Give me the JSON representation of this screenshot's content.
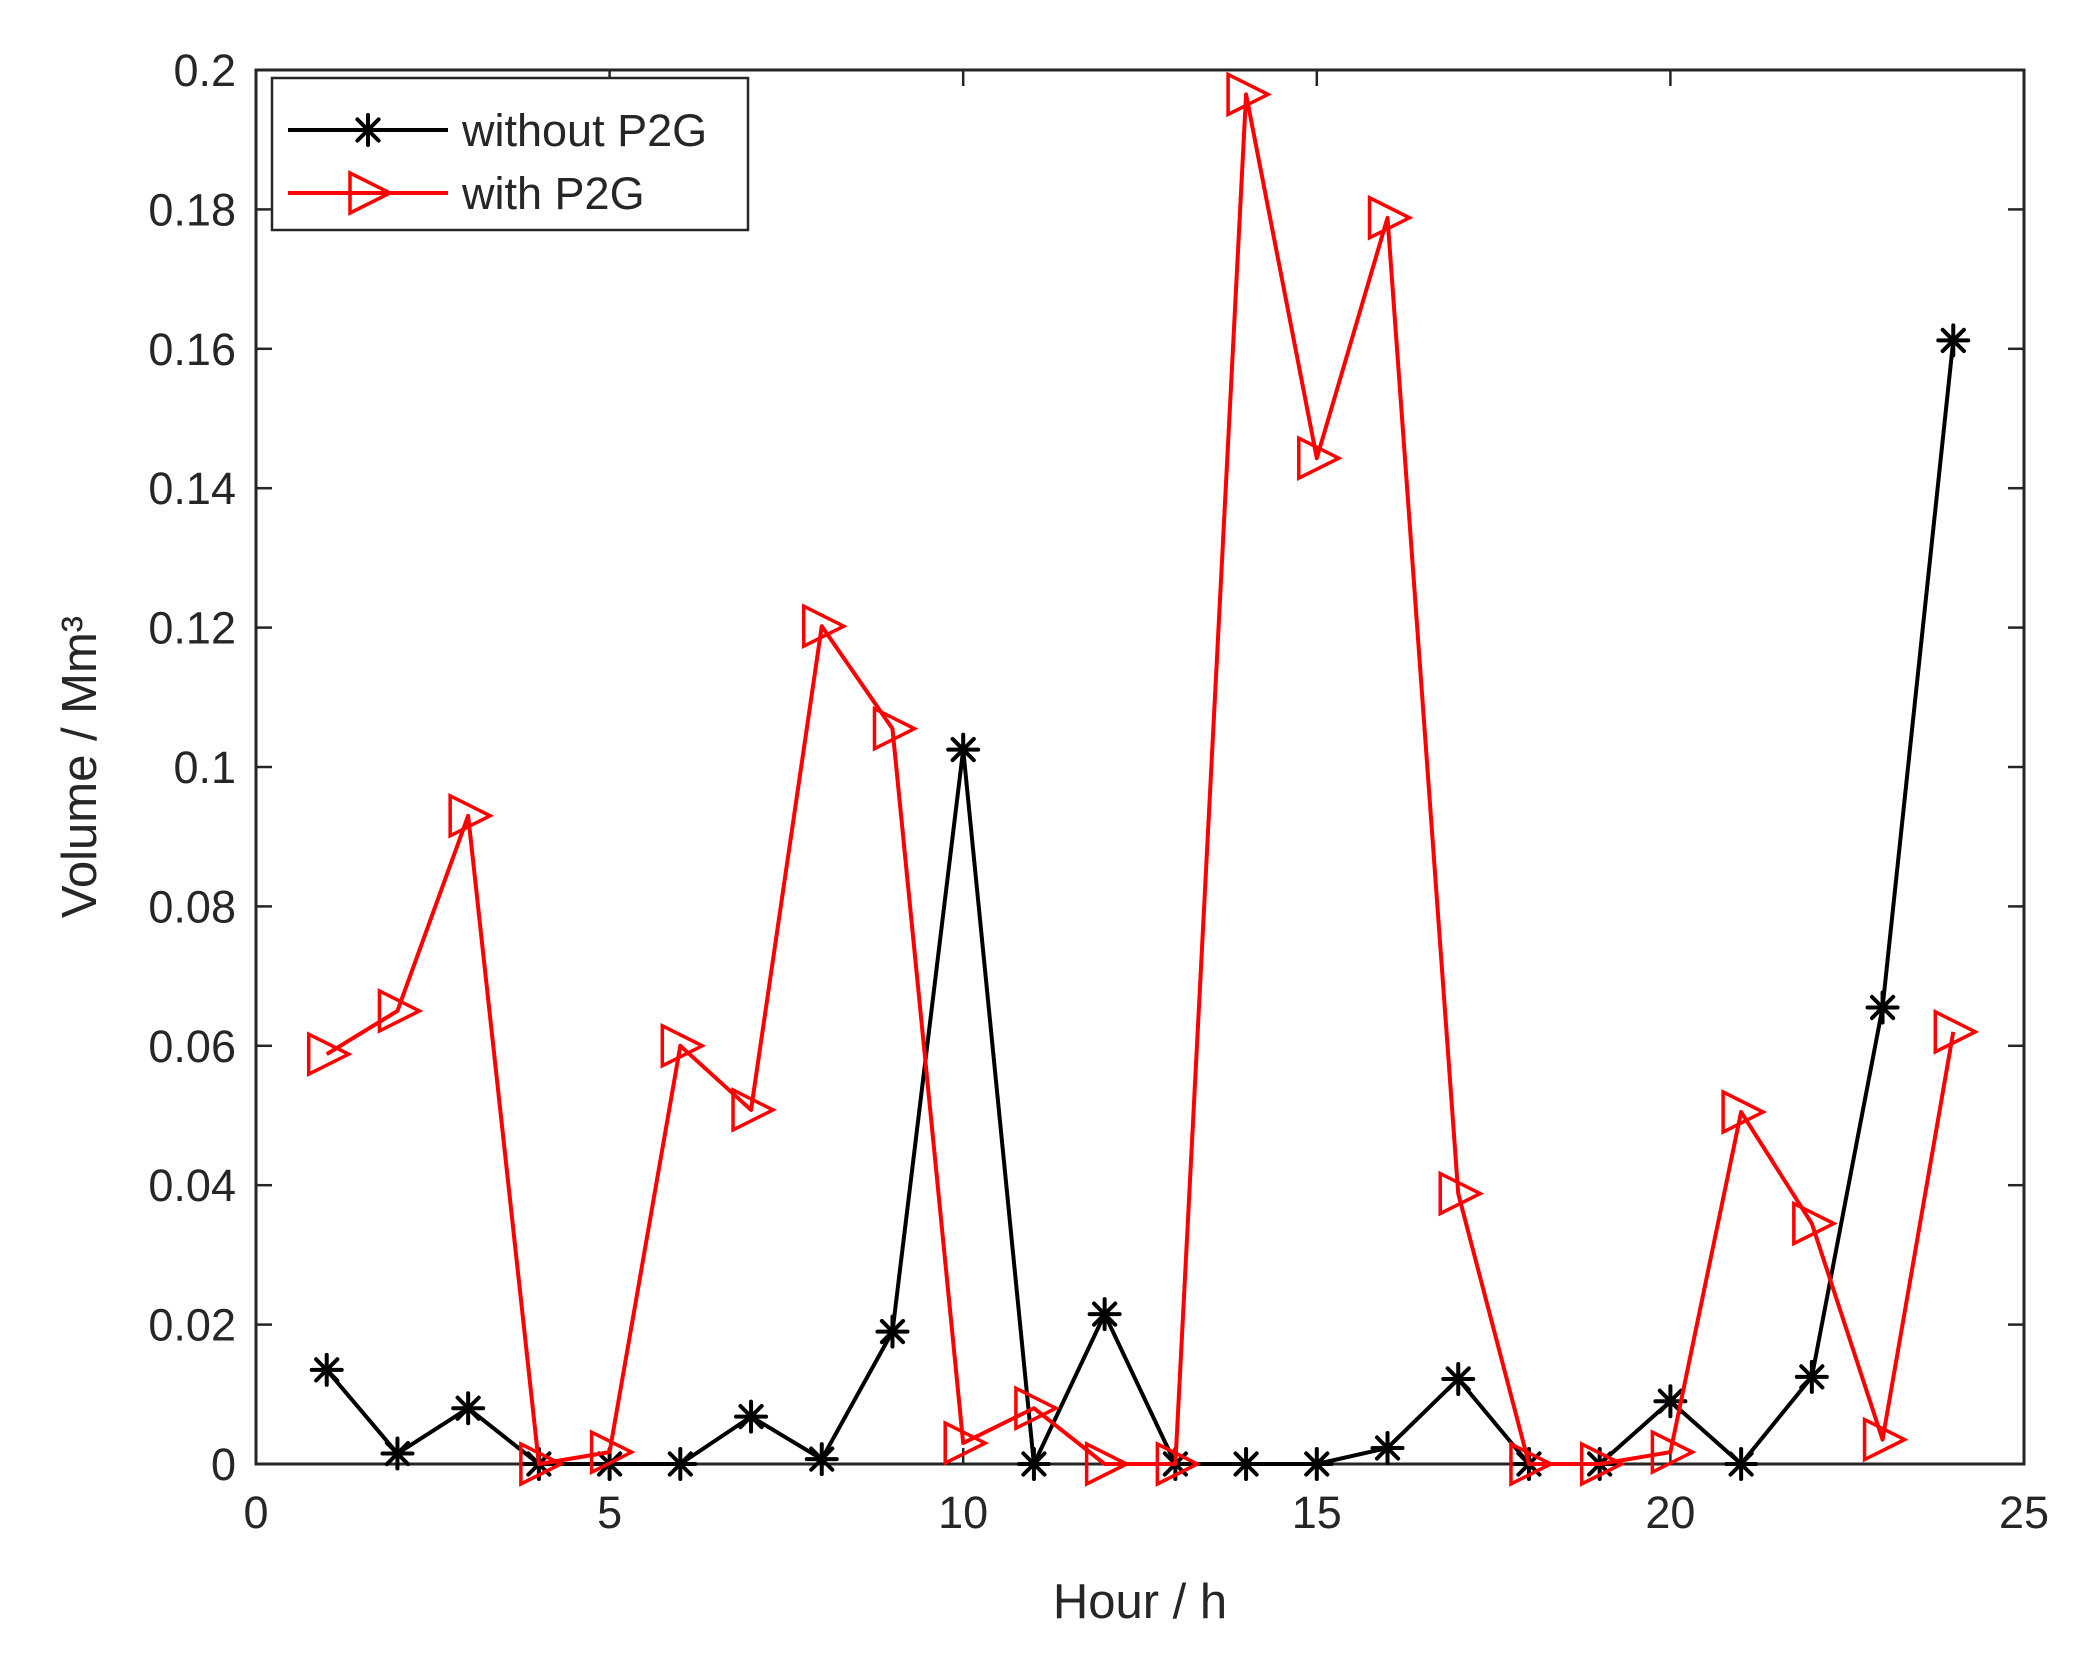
{
  "chart_data": {
    "type": "line",
    "title": "",
    "xlabel": "Hour / h",
    "ylabel": "Volume / Mm³",
    "xlim": [
      0,
      25
    ],
    "ylim": [
      0,
      0.2
    ],
    "xticks": [
      0,
      5,
      10,
      15,
      20,
      25
    ],
    "xtick_labels": [
      "0",
      "5",
      "10",
      "15",
      "20",
      "25"
    ],
    "yticks": [
      0,
      0.02,
      0.04,
      0.06,
      0.08,
      0.1,
      0.12,
      0.14,
      0.16,
      0.18,
      0.2
    ],
    "ytick_labels": [
      "0",
      "0.02",
      "0.04",
      "0.06",
      "0.08",
      "0.1",
      "0.12",
      "0.14",
      "0.16",
      "0.18",
      "0.2"
    ],
    "grid": false,
    "legend_position": "top-left",
    "x": [
      1,
      2,
      3,
      4,
      5,
      6,
      7,
      8,
      9,
      10,
      11,
      12,
      13,
      14,
      15,
      16,
      17,
      18,
      19,
      20,
      21,
      22,
      23,
      24
    ],
    "series": [
      {
        "name": "without P2G",
        "color": "#000000",
        "marker": "asterisk",
        "values": [
          0.0135,
          0.0015,
          0.008,
          0.0,
          0.0,
          0.0,
          0.0068,
          0.0007,
          0.019,
          0.1025,
          0.0,
          0.0215,
          0.0,
          0.0,
          0.0,
          0.0023,
          0.0122,
          0.0,
          0.0,
          0.009,
          0.0,
          0.0125,
          0.0655,
          0.1612
        ]
      },
      {
        "name": "with P2G",
        "color": "#ff0000",
        "marker": "triangle-right",
        "values": [
          0.0588,
          0.065,
          0.093,
          0.0,
          0.0017,
          0.06,
          0.0508,
          0.1202,
          0.1055,
          0.003,
          0.008,
          0.0,
          0.0,
          0.1965,
          0.1443,
          0.1788,
          0.0388,
          0.0,
          0.0,
          0.0017,
          0.0505,
          0.0345,
          0.0035,
          0.062
        ]
      }
    ]
  }
}
